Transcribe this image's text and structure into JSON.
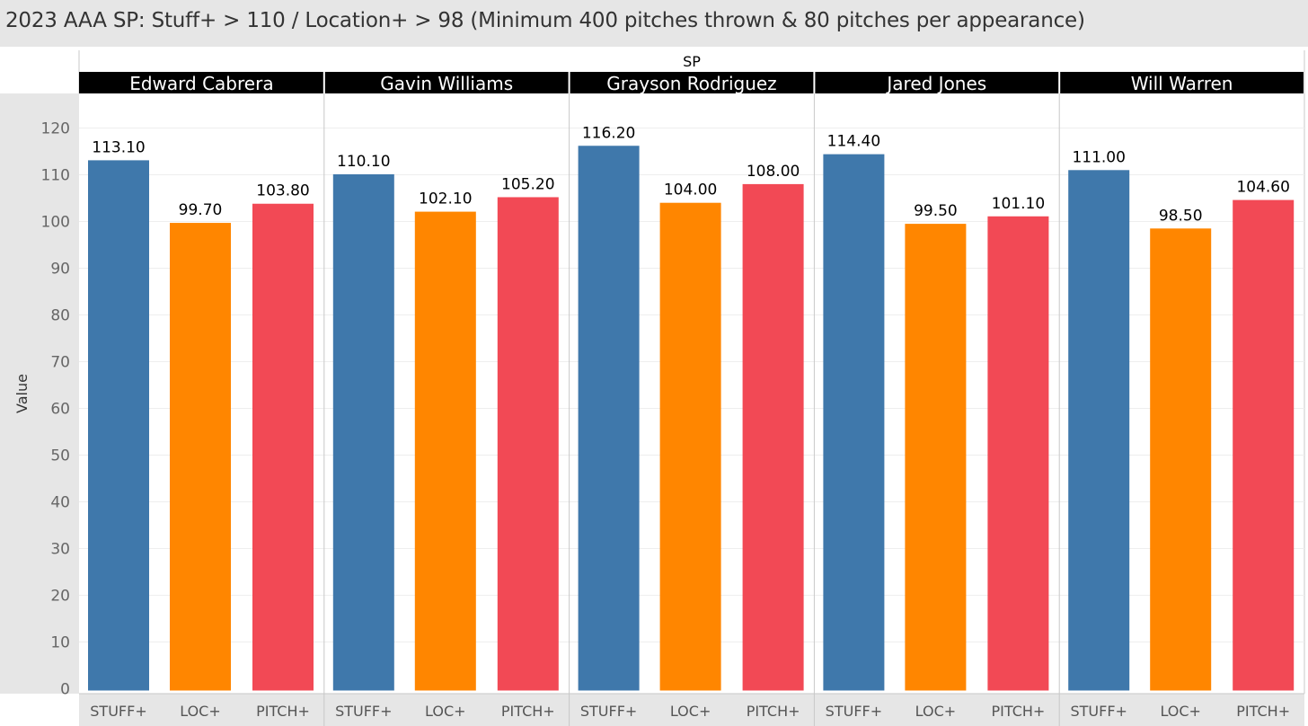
{
  "title": "2023 AAA SP: Stuff+ > 110 / Location+ > 98 (Minimum 400 pitches thrown & 80 pitches per appearance)",
  "chart_data": {
    "type": "bar",
    "title": "2023 AAA SP: Stuff+ > 110 / Location+ > 98 (Minimum 400 pitches thrown & 80 pitches per appearance)",
    "column_header": "SP",
    "ylabel": "Value",
    "ylim": [
      0,
      125
    ],
    "yticks": [
      0,
      10,
      20,
      30,
      40,
      50,
      60,
      70,
      80,
      90,
      100,
      110,
      120
    ],
    "categories": [
      "STUFF+",
      "LOC+",
      "PITCH+"
    ],
    "colors": {
      "STUFF+": "#3f78ab",
      "LOC+": "#ff8600",
      "PITCH+": "#f24955"
    },
    "panels": [
      {
        "name": "Edward Cabrera",
        "values": [
          113.1,
          99.7,
          103.8
        ],
        "labels": [
          "113.10",
          "99.70",
          "103.80"
        ]
      },
      {
        "name": "Gavin Williams",
        "values": [
          110.1,
          102.1,
          105.2
        ],
        "labels": [
          "110.10",
          "102.10",
          "105.20"
        ]
      },
      {
        "name": "Grayson Rodriguez",
        "values": [
          116.2,
          104.0,
          108.0
        ],
        "labels": [
          "116.20",
          "104.00",
          "108.00"
        ]
      },
      {
        "name": "Jared Jones",
        "values": [
          114.4,
          99.5,
          101.1
        ],
        "labels": [
          "114.40",
          "99.50",
          "101.10"
        ]
      },
      {
        "name": "Will Warren",
        "values": [
          111.0,
          98.5,
          104.6
        ],
        "labels": [
          "111.00",
          "98.50",
          "104.60"
        ]
      }
    ],
    "grid": true,
    "legend": "none"
  }
}
